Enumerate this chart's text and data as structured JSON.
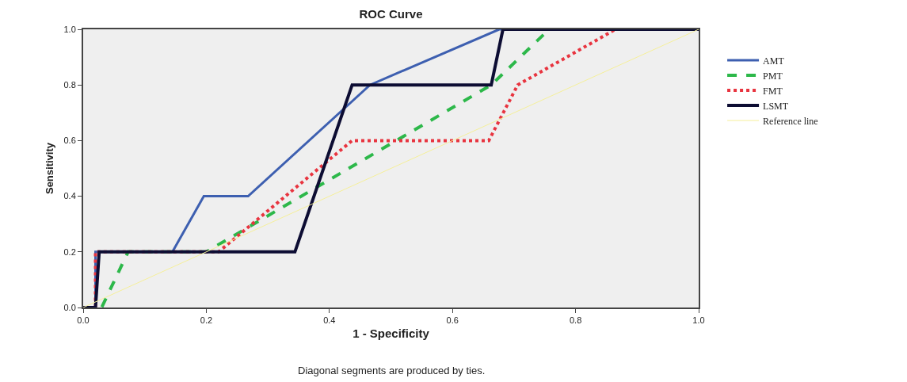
{
  "chart_data": {
    "type": "line",
    "title": "ROC Curve",
    "xlabel": "1 - Specificity",
    "ylabel": "Sensitivity",
    "annotations": [
      "Diagonal segments are produced by ties."
    ],
    "xlim": [
      0,
      1
    ],
    "ylim": [
      0,
      1
    ],
    "xticks": [
      {
        "value": 0,
        "label": "0.0"
      },
      {
        "value": 0.2,
        "label": "0.2"
      },
      {
        "value": 0.4,
        "label": "0.4"
      },
      {
        "value": 0.6,
        "label": "0.6"
      },
      {
        "value": 0.8,
        "label": "0.8"
      },
      {
        "value": 1,
        "label": "1.0"
      }
    ],
    "yticks": [
      {
        "value": 0,
        "label": "0.0"
      },
      {
        "value": 0.2,
        "label": "0.2"
      },
      {
        "value": 0.4,
        "label": "0.4"
      },
      {
        "value": 0.6,
        "label": "0.6"
      },
      {
        "value": 0.8,
        "label": "0.8"
      },
      {
        "value": 1,
        "label": "1.0"
      }
    ],
    "grid": false,
    "legend": "right",
    "marker": "none",
    "series": [
      {
        "name": "AMT",
        "color": "#3d5fb0",
        "line_style": "solid",
        "x": [
          0,
          0.02,
          0.02,
          0.145,
          0.196,
          0.268,
          0.466,
          0.676,
          1
        ],
        "values": [
          0,
          0,
          0.2,
          0.2,
          0.4,
          0.4,
          0.8,
          1,
          1
        ]
      },
      {
        "name": "PMT",
        "color": "#2db84a",
        "line_style": "dashed",
        "x": [
          0,
          0.03,
          0.073,
          0.2,
          0.663,
          0.757,
          1
        ],
        "values": [
          0,
          0,
          0.2,
          0.2,
          0.8,
          1,
          1
        ]
      },
      {
        "name": "FMT",
        "color": "#e8343f",
        "line_style": "dotted",
        "x": [
          0,
          0.02,
          0.02,
          0.22,
          0.437,
          0.659,
          0.706,
          0.865
        ],
        "values": [
          0,
          0,
          0.2,
          0.2,
          0.6,
          0.6,
          0.8,
          1
        ]
      },
      {
        "name": "LSMT",
        "color": "#0d0d33",
        "line_style": "solid",
        "x": [
          0,
          0.02,
          0.026,
          0.344,
          0.437,
          0.663,
          0.682,
          1
        ],
        "values": [
          0,
          0,
          0.2,
          0.2,
          0.8,
          0.8,
          1,
          1
        ]
      },
      {
        "name": "Reference line",
        "color": "#f5ef9a",
        "line_style": "solid",
        "x": [
          0,
          1
        ],
        "values": [
          0,
          1
        ]
      }
    ]
  }
}
